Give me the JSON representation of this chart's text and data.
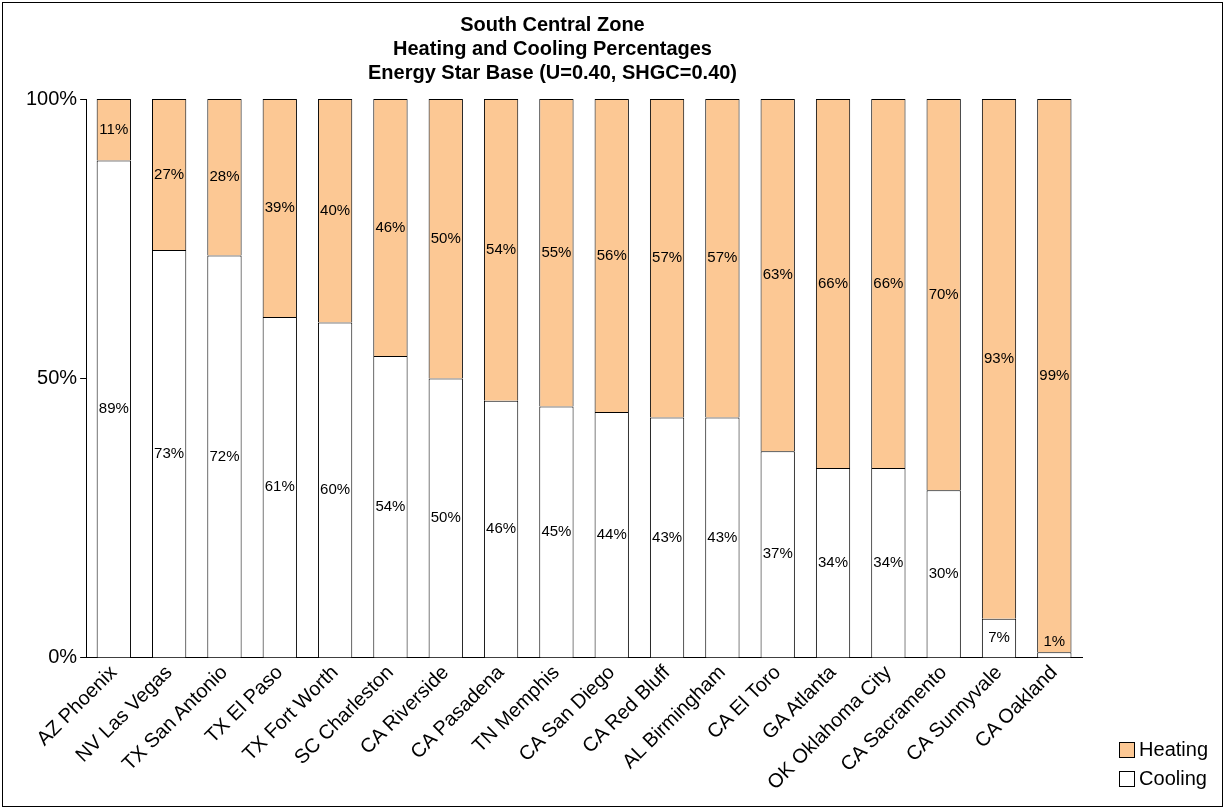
{
  "chart_data": {
    "type": "bar",
    "title": "South Central Zone\nHeating and Cooling Percentages\nEnergy Star Base (U=0.40, SHGC=0.40)",
    "stacked": true,
    "categories": [
      "AZ Phoenix",
      "NV Las Vegas",
      "TX San Antonio",
      "TX El Paso",
      "TX Fort Worth",
      "SC Charleston",
      "CA Riverside",
      "CA Pasadena",
      "TN Memphis",
      "CA San Diego",
      "CA Red Bluff",
      "AL Birmingham",
      "CA El Toro",
      "GA Atlanta",
      "OK Oklahoma City",
      "CA Sacramento",
      "CA Sunnyvale",
      "CA Oakland"
    ],
    "series": [
      {
        "name": "Cooling",
        "color": "#ffffff",
        "values": [
          89,
          73,
          72,
          61,
          60,
          54,
          50,
          46,
          45,
          44,
          43,
          43,
          37,
          34,
          34,
          30,
          7,
          1
        ],
        "value_labels": [
          "89%",
          "73%",
          "72%",
          "61%",
          "60%",
          "54%",
          "50%",
          "46%",
          "45%",
          "44%",
          "43%",
          "43%",
          "37%",
          "34%",
          "34%",
          "30%",
          "7%",
          "1%"
        ]
      },
      {
        "name": "Heating",
        "color": "#fcc894",
        "values": [
          11,
          27,
          28,
          39,
          40,
          46,
          50,
          54,
          55,
          56,
          57,
          57,
          63,
          66,
          66,
          70,
          93,
          99
        ],
        "value_labels": [
          "11%",
          "27%",
          "28%",
          "39%",
          "40%",
          "46%",
          "50%",
          "54%",
          "55%",
          "56%",
          "57%",
          "57%",
          "63%",
          "66%",
          "66%",
          "70%",
          "93%",
          "99%"
        ]
      }
    ],
    "ylim": [
      0,
      100
    ],
    "yticks": [
      {
        "value": 0,
        "label": "0%"
      },
      {
        "value": 50,
        "label": "50%"
      },
      {
        "value": 100,
        "label": "100%"
      }
    ],
    "grid": false,
    "legend": "bottom right"
  }
}
